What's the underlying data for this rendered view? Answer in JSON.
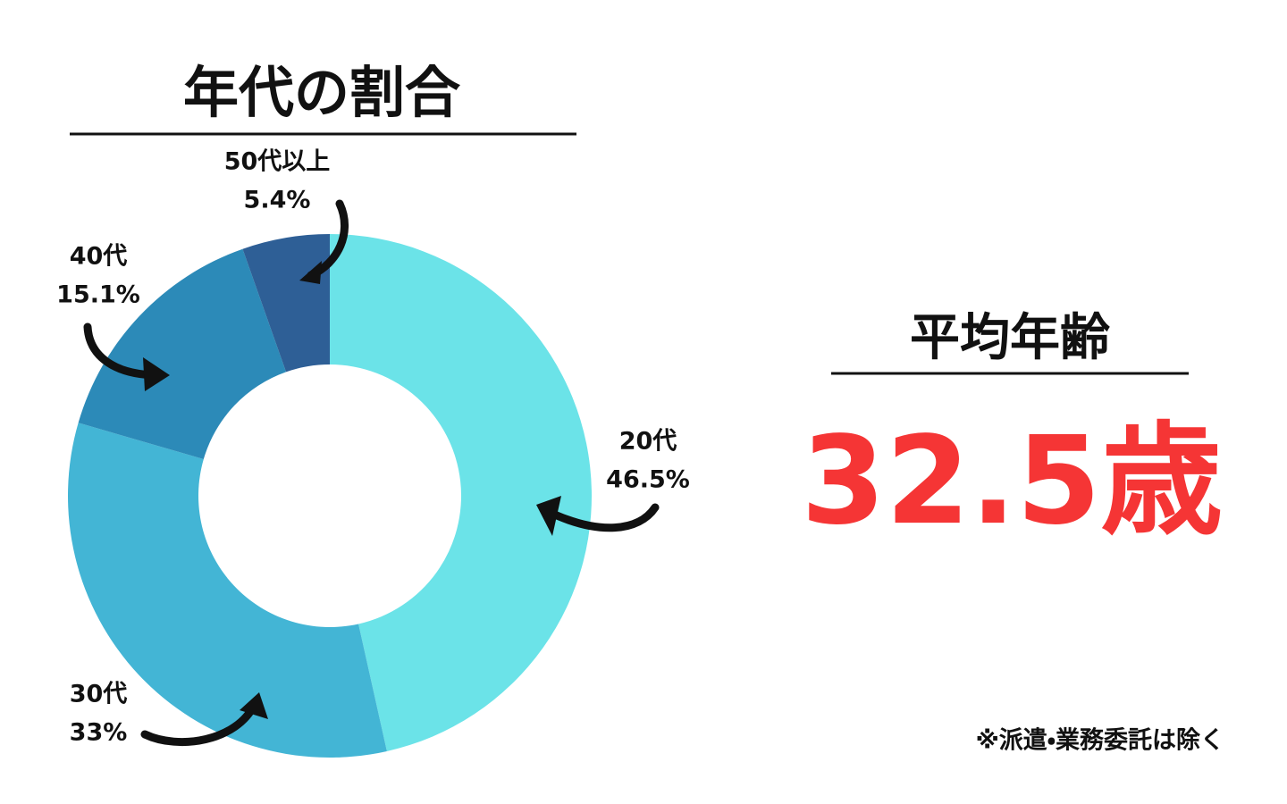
{
  "chart_data": {
    "type": "donut",
    "title": "年代の割合",
    "categories": [
      "20代",
      "30代",
      "40代",
      "50代以上"
    ],
    "values": [
      46.5,
      33,
      15.1,
      5.4
    ],
    "value_labels": [
      "46.5%",
      "33%",
      "15.1%",
      "5.4%"
    ],
    "colors": [
      "#6be3e8",
      "#43b5d5",
      "#2c8ab8",
      "#2e5f96"
    ]
  },
  "average_age": {
    "title": "平均年齢",
    "value": "32.5歳"
  },
  "note": "※派遣・業務委託は除く"
}
